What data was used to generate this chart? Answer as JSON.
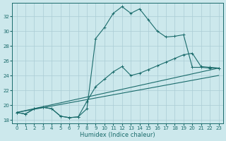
{
  "xlabel": "Humidex (Indice chaleur)",
  "bg_color": "#cce8ec",
  "line_color": "#1a6b6b",
  "grid_color": "#aaccd4",
  "xlim": [
    -0.5,
    23.5
  ],
  "ylim": [
    17.5,
    33.8
  ],
  "xticks": [
    0,
    1,
    2,
    3,
    4,
    5,
    6,
    7,
    8,
    9,
    10,
    11,
    12,
    13,
    14,
    15,
    16,
    17,
    18,
    19,
    20,
    21,
    22,
    23
  ],
  "yticks": [
    18,
    20,
    22,
    24,
    26,
    28,
    30,
    32
  ],
  "curve1_x": [
    0,
    1,
    2,
    3,
    4,
    5,
    6,
    7,
    8,
    9,
    10,
    11,
    12,
    13,
    14,
    15,
    16,
    17,
    18,
    19,
    20,
    21,
    22,
    23
  ],
  "curve1_y": [
    19.0,
    18.8,
    19.5,
    19.7,
    19.5,
    18.5,
    18.3,
    18.4,
    19.5,
    29.0,
    30.5,
    32.4,
    33.3,
    32.4,
    33.0,
    31.5,
    30.0,
    29.2,
    29.3,
    29.5,
    25.1,
    25.1,
    25.0,
    25.0
  ],
  "curve2_x": [
    0,
    1,
    2,
    3,
    4,
    5,
    6,
    7,
    8,
    9,
    10,
    11,
    12,
    13,
    14,
    15,
    16,
    17,
    18,
    19,
    20,
    21,
    22,
    23
  ],
  "curve2_y": [
    19.0,
    18.8,
    19.5,
    19.7,
    19.5,
    18.5,
    18.3,
    18.4,
    20.5,
    22.5,
    23.5,
    24.5,
    25.2,
    24.0,
    24.3,
    24.8,
    25.3,
    25.8,
    26.3,
    26.8,
    27.0,
    25.2,
    25.1,
    25.0
  ],
  "curve3_x": [
    0,
    23
  ],
  "curve3_y": [
    19.0,
    25.0
  ],
  "curve4_x": [
    0,
    23
  ],
  "curve4_y": [
    19.0,
    24.0
  ]
}
